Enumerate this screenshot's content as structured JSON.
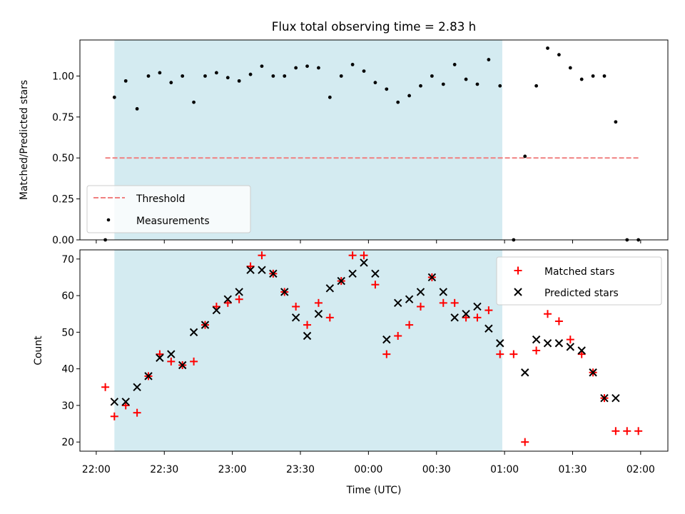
{
  "chart_data": [
    {
      "type": "scatter",
      "title": "Flux total observing time = 2.83 h",
      "ylabel": "Matched/Predicted stars",
      "xlabel": "",
      "ylim": [
        0,
        1.22
      ],
      "y_ticks": [
        "0.00",
        "0.25",
        "0.50",
        "0.75",
        "1.00"
      ],
      "legend": {
        "placement": "lower-left",
        "threshold_label": "Threshold",
        "measurements_label": "Measurements"
      },
      "shaded_range": [
        "22:08",
        "00:59"
      ],
      "shade_color": "#d4ebf1",
      "threshold": {
        "y": 0.5,
        "x": [
          "22:04",
          "01:59"
        ],
        "color": "#f08080"
      },
      "series": [
        {
          "name": "Measurements",
          "color": "#000000",
          "x": [
            "22:04",
            "22:08",
            "22:13",
            "22:18",
            "22:23",
            "22:28",
            "22:33",
            "22:38",
            "22:43",
            "22:48",
            "22:53",
            "22:58",
            "23:03",
            "23:08",
            "23:13",
            "23:18",
            "23:23",
            "23:28",
            "23:33",
            "23:38",
            "23:43",
            "23:48",
            "23:53",
            "23:58",
            "00:03",
            "00:08",
            "00:13",
            "00:18",
            "00:23",
            "00:28",
            "00:33",
            "00:38",
            "00:43",
            "00:48",
            "00:53",
            "00:58",
            "01:04",
            "01:09",
            "01:14",
            "01:19",
            "01:24",
            "01:29",
            "01:34",
            "01:39",
            "01:44",
            "01:49",
            "01:54",
            "01:59"
          ],
          "y": [
            0.0,
            0.87,
            0.97,
            0.8,
            1.0,
            1.02,
            0.96,
            1.0,
            0.84,
            1.0,
            1.02,
            0.99,
            0.97,
            1.01,
            1.06,
            1.0,
            1.0,
            1.05,
            1.06,
            1.05,
            0.87,
            1.0,
            1.07,
            1.03,
            0.96,
            0.92,
            0.84,
            0.88,
            0.94,
            1.0,
            0.95,
            1.07,
            0.98,
            0.95,
            1.1,
            0.94,
            0.0,
            0.51,
            0.94,
            1.17,
            1.13,
            1.05,
            0.98,
            1.0,
            1.0,
            0.72,
            0.0,
            0.0
          ]
        }
      ]
    },
    {
      "type": "scatter",
      "title": "",
      "xlabel": "Time (UTC)",
      "ylabel": "Count",
      "ylim": [
        17.5,
        72.5
      ],
      "y_ticks": [
        "20",
        "30",
        "40",
        "50",
        "60",
        "70"
      ],
      "x_ticks": [
        "22:00",
        "22:30",
        "23:00",
        "23:30",
        "00:00",
        "00:30",
        "01:00",
        "01:30",
        "02:00"
      ],
      "legend": {
        "placement": "top-right"
      },
      "shaded_range": [
        "22:08",
        "00:59"
      ],
      "shade_color": "#d4ebf1",
      "series": [
        {
          "name": "Matched stars",
          "marker": "plus",
          "color": "#ff0000",
          "x": [
            "22:04",
            "22:08",
            "22:13",
            "22:18",
            "22:23",
            "22:28",
            "22:33",
            "22:38",
            "22:43",
            "22:48",
            "22:53",
            "22:58",
            "23:03",
            "23:08",
            "23:13",
            "23:18",
            "23:23",
            "23:28",
            "23:33",
            "23:38",
            "23:43",
            "23:48",
            "23:53",
            "23:58",
            "00:03",
            "00:08",
            "00:13",
            "00:18",
            "00:23",
            "00:28",
            "00:33",
            "00:38",
            "00:43",
            "00:48",
            "00:53",
            "00:58",
            "01:04",
            "01:09",
            "01:14",
            "01:19",
            "01:24",
            "01:29",
            "01:34",
            "01:39",
            "01:44",
            "01:49",
            "01:54",
            "01:59"
          ],
          "y": [
            35,
            27,
            30,
            28,
            38,
            44,
            42,
            41,
            42,
            52,
            57,
            58,
            59,
            68,
            71,
            66,
            61,
            57,
            52,
            58,
            54,
            64,
            71,
            71,
            63,
            44,
            49,
            52,
            57,
            65,
            58,
            58,
            54,
            54,
            56,
            44,
            44,
            20,
            45,
            55,
            53,
            48,
            44,
            39,
            32,
            23,
            23,
            23
          ]
        },
        {
          "name": "Predicted stars",
          "marker": "x",
          "color": "#000000",
          "x": [
            "22:08",
            "22:13",
            "22:18",
            "22:23",
            "22:28",
            "22:33",
            "22:38",
            "22:43",
            "22:48",
            "22:53",
            "22:58",
            "23:03",
            "23:08",
            "23:13",
            "23:18",
            "23:23",
            "23:28",
            "23:33",
            "23:38",
            "23:43",
            "23:48",
            "23:53",
            "23:58",
            "00:03",
            "00:08",
            "00:13",
            "00:18",
            "00:23",
            "00:28",
            "00:33",
            "00:38",
            "00:43",
            "00:48",
            "00:53",
            "00:58",
            "01:09",
            "01:14",
            "01:19",
            "01:24",
            "01:29",
            "01:34",
            "01:39",
            "01:44",
            "01:49"
          ],
          "y": [
            31,
            31,
            35,
            38,
            43,
            44,
            41,
            50,
            52,
            56,
            59,
            61,
            67,
            67,
            66,
            61,
            54,
            49,
            55,
            62,
            64,
            66,
            69,
            66,
            48,
            58,
            59,
            61,
            65,
            61,
            54,
            55,
            57,
            51,
            47,
            39,
            48,
            47,
            47,
            46,
            45,
            39,
            32,
            32
          ]
        }
      ]
    }
  ]
}
